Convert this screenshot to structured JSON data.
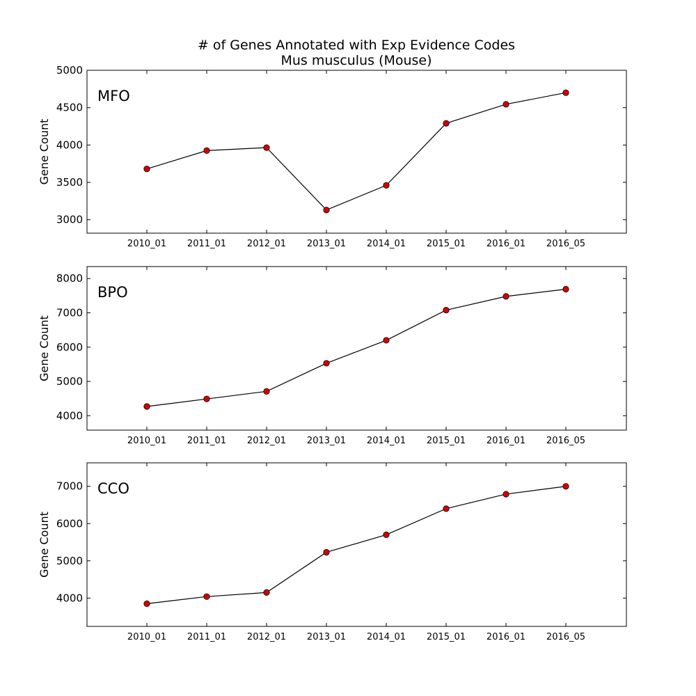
{
  "title_line1": "# of Genes Annotated with Exp Evidence Codes",
  "title_line2": "Mus musculus (Mouse)",
  "chart_data": [
    {
      "type": "line",
      "label": "MFO",
      "ylabel": "Gene Count",
      "categories": [
        "2010_01",
        "2011_01",
        "2012_01",
        "2013_01",
        "2014_01",
        "2015_01",
        "2016_01",
        "2016_05"
      ],
      "series": [
        {
          "values": [
            3680,
            3925,
            3965,
            3130,
            3460,
            4290,
            4545,
            4700
          ]
        }
      ],
      "ylim": [
        2820,
        5000
      ],
      "yticks": [
        3000,
        3500,
        4000,
        4500,
        5000
      ],
      "marker_color": "#d40000",
      "line_color": "#000000"
    },
    {
      "type": "line",
      "label": "BPO",
      "ylabel": "Gene Count",
      "categories": [
        "2010_01",
        "2011_01",
        "2012_01",
        "2013_01",
        "2014_01",
        "2015_01",
        "2016_01",
        "2016_05"
      ],
      "series": [
        {
          "values": [
            4270,
            4490,
            4710,
            5530,
            6200,
            7080,
            7480,
            7690
          ]
        }
      ],
      "ylim": [
        3580,
        8350
      ],
      "yticks": [
        4000,
        5000,
        6000,
        7000,
        8000
      ],
      "marker_color": "#d40000",
      "line_color": "#000000"
    },
    {
      "type": "line",
      "label": "CCO",
      "ylabel": "Gene Count",
      "categories": [
        "2010_01",
        "2011_01",
        "2012_01",
        "2013_01",
        "2014_01",
        "2015_01",
        "2016_01",
        "2016_05"
      ],
      "series": [
        {
          "values": [
            3850,
            4040,
            4150,
            5230,
            5700,
            6400,
            6790,
            7000
          ]
        }
      ],
      "ylim": [
        3240,
        7630
      ],
      "yticks": [
        4000,
        5000,
        6000,
        7000
      ],
      "marker_color": "#d40000",
      "line_color": "#000000"
    }
  ]
}
